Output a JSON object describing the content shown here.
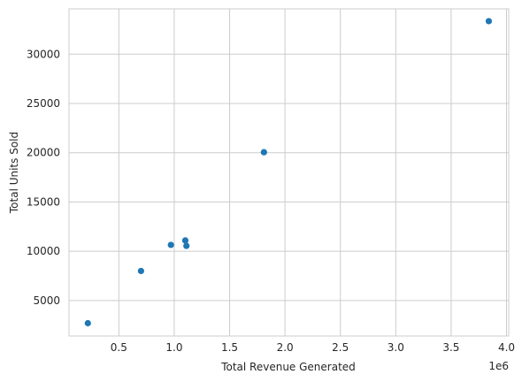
{
  "chart_data": {
    "type": "scatter",
    "title": "",
    "xlabel": "Total Revenue Generated",
    "ylabel": "Total Units Sold",
    "x_offset_label": "1e6",
    "xlim": [
      50000,
      4020000
    ],
    "ylim": [
      1400,
      34600
    ],
    "x_ticks": [
      500000,
      1000000,
      1500000,
      2000000,
      2500000,
      3000000,
      3500000,
      4000000
    ],
    "x_tick_labels": [
      "0.5",
      "1.0",
      "1.5",
      "2.0",
      "2.5",
      "3.0",
      "3.5",
      "4.0"
    ],
    "y_ticks": [
      5000,
      10000,
      15000,
      20000,
      25000,
      30000
    ],
    "y_tick_labels": [
      "5000",
      "10000",
      "15000",
      "20000",
      "25000",
      "30000"
    ],
    "grid": true,
    "marker_color": "#1f77b4",
    "points": [
      {
        "x": 220000,
        "y": 2700
      },
      {
        "x": 700000,
        "y": 8000
      },
      {
        "x": 970000,
        "y": 10650
      },
      {
        "x": 1100000,
        "y": 11100
      },
      {
        "x": 1110000,
        "y": 10550
      },
      {
        "x": 1810000,
        "y": 20050
      },
      {
        "x": 3840000,
        "y": 33350
      }
    ]
  }
}
